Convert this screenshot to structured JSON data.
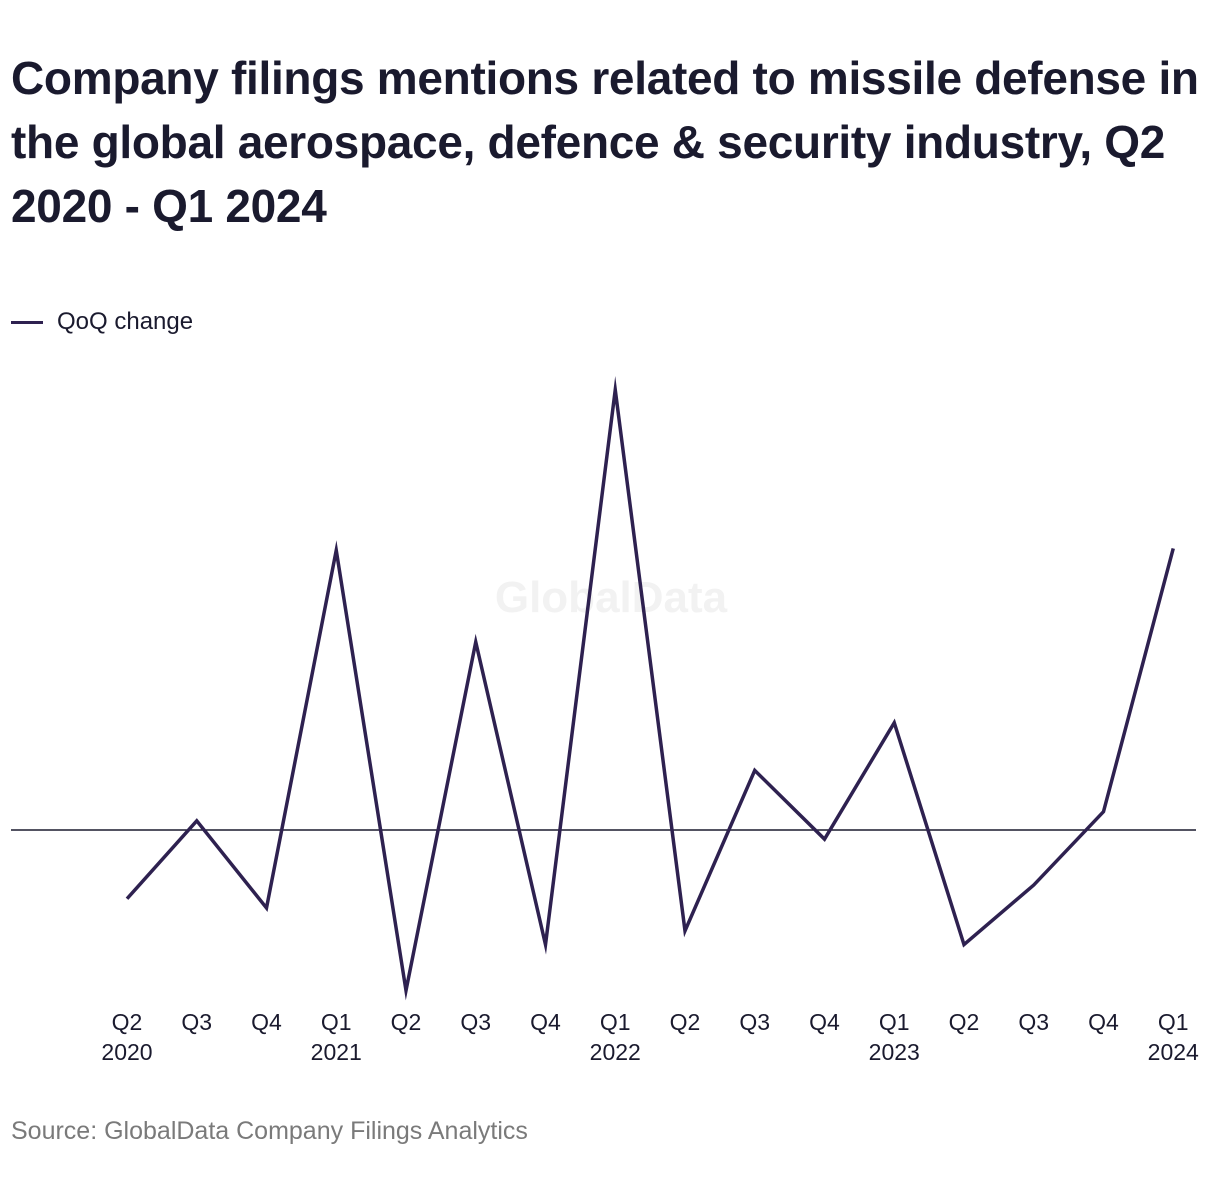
{
  "title": "Company filings mentions related to missile defense in the global aerospace, defence & security industry, Q2 2020 - Q1 2024",
  "legend": {
    "label": "QoQ change",
    "color": "#2e2150"
  },
  "watermark": "GlobalData",
  "source": "Source: GlobalData Company Filings Analytics",
  "chart_data": {
    "type": "line",
    "title": "Company filings mentions related to missile defense in the global aerospace, defence & security industry, Q2 2020 - Q1 2024",
    "xlabel": "",
    "ylabel": "",
    "grid": false,
    "legend_position": "top-left",
    "zero_line": true,
    "ylim": [
      -19,
      48
    ],
    "categories": [
      {
        "quarter": "Q2",
        "year": "2020"
      },
      {
        "quarter": "Q3",
        "year": ""
      },
      {
        "quarter": "Q4",
        "year": ""
      },
      {
        "quarter": "Q1",
        "year": "2021"
      },
      {
        "quarter": "Q2",
        "year": ""
      },
      {
        "quarter": "Q3",
        "year": ""
      },
      {
        "quarter": "Q4",
        "year": ""
      },
      {
        "quarter": "Q1",
        "year": "2022"
      },
      {
        "quarter": "Q2",
        "year": ""
      },
      {
        "quarter": "Q3",
        "year": ""
      },
      {
        "quarter": "Q4",
        "year": ""
      },
      {
        "quarter": "Q1",
        "year": "2023"
      },
      {
        "quarter": "Q2",
        "year": ""
      },
      {
        "quarter": "Q3",
        "year": ""
      },
      {
        "quarter": "Q4",
        "year": ""
      },
      {
        "quarter": "Q1",
        "year": "2024"
      }
    ],
    "series": [
      {
        "name": "QoQ change",
        "color": "#2e2150",
        "values": [
          -7.5,
          1,
          -8.5,
          30.5,
          -17.5,
          20.5,
          -12.5,
          48,
          -11,
          6.5,
          -1,
          11.7,
          -12.5,
          -6,
          2,
          30.7
        ]
      }
    ]
  }
}
